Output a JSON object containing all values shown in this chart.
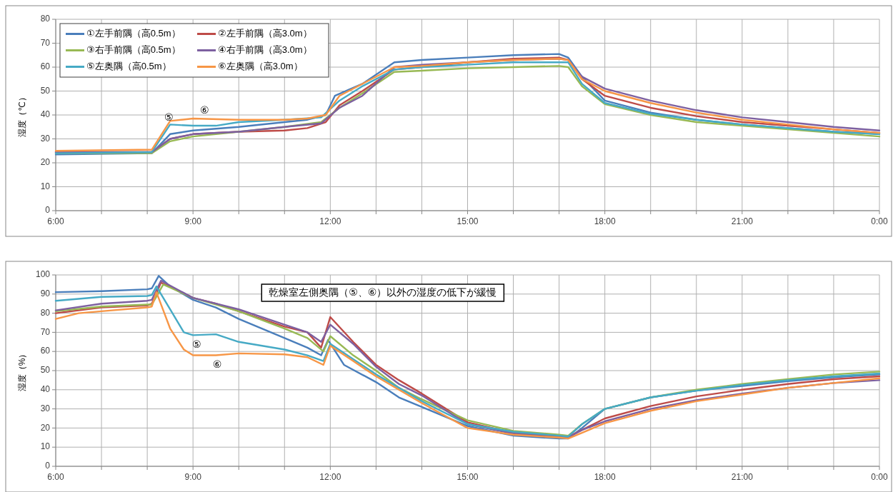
{
  "chart_data": [
    {
      "type": "line",
      "ylabel": "湿度（℃）",
      "xlim": [
        6,
        24
      ],
      "ylim": [
        0,
        80
      ],
      "xticks": [
        {
          "value": 6,
          "label": "6:00"
        },
        {
          "value": 7,
          "label": null
        },
        {
          "value": 8,
          "label": null
        },
        {
          "value": 9,
          "label": "9:00"
        },
        {
          "value": 10,
          "label": null
        },
        {
          "value": 11,
          "label": null
        },
        {
          "value": 12,
          "label": "12:00"
        },
        {
          "value": 13,
          "label": null
        },
        {
          "value": 14,
          "label": null
        },
        {
          "value": 15,
          "label": "15:00"
        },
        {
          "value": 16,
          "label": null
        },
        {
          "value": 17,
          "label": null
        },
        {
          "value": 18,
          "label": "18:00"
        },
        {
          "value": 19,
          "label": null
        },
        {
          "value": 20,
          "label": null
        },
        {
          "value": 21,
          "label": "21:00"
        },
        {
          "value": 22,
          "label": null
        },
        {
          "value": 23,
          "label": null
        },
        {
          "value": 24,
          "label": "0:00"
        }
      ],
      "yticks": [
        0,
        10,
        20,
        30,
        40,
        50,
        60,
        70,
        80
      ],
      "grid": true,
      "legend": "top left",
      "marker": "none",
      "line_style": "solid",
      "series": [
        {
          "name": "①左手前隅（高0.5m）",
          "color": "#4a7ebb",
          "x": [
            6,
            8.1,
            8.5,
            9,
            10,
            11,
            11.5,
            11.9,
            12.1,
            12.7,
            13.4,
            14,
            15,
            16,
            17,
            17.2,
            17.5,
            18,
            19,
            20,
            21,
            22,
            23,
            24
          ],
          "values": [
            23.5,
            24,
            32,
            33.5,
            35,
            37,
            38,
            40,
            48,
            53,
            62,
            63,
            64,
            65,
            65.5,
            64,
            56,
            46,
            41,
            38,
            36,
            34.5,
            33,
            32
          ]
        },
        {
          "name": "②左手前隅（高3.0m）",
          "color": "#be4b48",
          "x": [
            6,
            8.1,
            8.5,
            9,
            10,
            11,
            11.5,
            11.9,
            12.2,
            12.7,
            13.4,
            14,
            15,
            16,
            17,
            17.2,
            17.5,
            18,
            19,
            20,
            21,
            22,
            23,
            24
          ],
          "values": [
            24.5,
            24.5,
            30,
            32,
            33,
            33.5,
            34.5,
            37,
            44,
            50,
            59,
            60,
            62,
            63.5,
            64,
            63,
            55,
            48,
            43,
            39.5,
            37,
            35.5,
            34,
            32.5
          ]
        },
        {
          "name": "③右手前隅（高0.5m）",
          "color": "#98b954",
          "x": [
            6,
            8.1,
            8.5,
            9,
            10,
            11,
            11.8,
            12.2,
            12.7,
            13.4,
            14,
            15,
            16,
            17,
            17.2,
            17.5,
            18,
            19,
            20,
            21,
            22,
            23,
            24
          ],
          "values": [
            24,
            24,
            29,
            31,
            33,
            35,
            37,
            43,
            49,
            58,
            58.5,
            59.5,
            60,
            60.5,
            60,
            52,
            44.5,
            40,
            37,
            35.5,
            34,
            32.5,
            31
          ]
        },
        {
          "name": "④右手前隅（高3.0m）",
          "color": "#7d60a0",
          "x": [
            6,
            8.1,
            8.5,
            9,
            10,
            11,
            11.8,
            12.2,
            12.7,
            13.4,
            14,
            15,
            16,
            17,
            17.2,
            17.5,
            18,
            19,
            20,
            21,
            22,
            23,
            24
          ],
          "values": [
            24.5,
            24.5,
            30,
            32,
            33,
            35,
            36.5,
            43,
            48,
            60,
            61,
            62,
            63,
            63.5,
            63,
            56,
            51,
            46,
            42,
            39,
            37,
            35,
            33.5
          ]
        },
        {
          "name": "⑤左奥隅（高0.5m）",
          "color": "#46aac5",
          "x": [
            6,
            8.1,
            8.5,
            9,
            9.5,
            10,
            11,
            11.8,
            12.2,
            12.7,
            13.4,
            14,
            15,
            16,
            17,
            17.2,
            17.5,
            18,
            19,
            20,
            21,
            22,
            23,
            24
          ],
          "values": [
            24,
            24.5,
            36,
            35.5,
            35.5,
            37,
            38,
            39,
            46,
            52,
            59,
            60,
            61,
            62,
            62,
            62,
            53,
            45,
            40.5,
            38,
            36,
            34.5,
            33,
            32
          ]
        },
        {
          "name": "⑥左奥隅（高3.0m）",
          "color": "#f79646",
          "x": [
            6,
            8.1,
            8.5,
            9,
            10,
            11,
            11.5,
            11.9,
            12.2,
            12.7,
            13.4,
            14,
            15,
            16,
            17,
            17.2,
            17.5,
            18,
            19,
            20,
            21,
            22,
            23,
            24
          ],
          "values": [
            25,
            25.5,
            37.5,
            38.5,
            38,
            38,
            38.5,
            40,
            48,
            53,
            60,
            60.5,
            62,
            63,
            63.5,
            63,
            55,
            50,
            45,
            41,
            38,
            36,
            34,
            32.5
          ]
        }
      ],
      "annotations": [
        {
          "text": "⑤",
          "x": 8.47,
          "y": 35.5
        },
        {
          "text": "⑥",
          "x": 9.25,
          "y": 38.5
        }
      ]
    },
    {
      "type": "line",
      "ylabel": "湿度（%）",
      "xlim": [
        6,
        24
      ],
      "ylim": [
        0,
        100
      ],
      "xticks": [
        {
          "value": 6,
          "label": "6:00"
        },
        {
          "value": 7,
          "label": null
        },
        {
          "value": 8,
          "label": null
        },
        {
          "value": 9,
          "label": "9:00"
        },
        {
          "value": 10,
          "label": null
        },
        {
          "value": 11,
          "label": null
        },
        {
          "value": 12,
          "label": "12:00"
        },
        {
          "value": 13,
          "label": null
        },
        {
          "value": 14,
          "label": null
        },
        {
          "value": 15,
          "label": "15:00"
        },
        {
          "value": 16,
          "label": null
        },
        {
          "value": 17,
          "label": null
        },
        {
          "value": 18,
          "label": "18:00"
        },
        {
          "value": 19,
          "label": null
        },
        {
          "value": 20,
          "label": null
        },
        {
          "value": 21,
          "label": "21:00"
        },
        {
          "value": 22,
          "label": null
        },
        {
          "value": 23,
          "label": null
        },
        {
          "value": 24,
          "label": "0:00"
        }
      ],
      "yticks": [
        0,
        10,
        20,
        30,
        40,
        50,
        60,
        70,
        80,
        90,
        100
      ],
      "grid": true,
      "marker": "none",
      "line_style": "solid",
      "series": [
        {
          "color": "#4a7ebb",
          "x": [
            6,
            7,
            8,
            8.1,
            8.25,
            8.5,
            9,
            9.5,
            10,
            11,
            11.5,
            11.8,
            11.95,
            12.3,
            13,
            13.5,
            14,
            15,
            16,
            17,
            17.2,
            17.5,
            18,
            19,
            20,
            21,
            22,
            23,
            24
          ],
          "values": [
            91,
            91.5,
            92.5,
            93,
            99.5,
            94,
            87,
            83,
            77,
            67,
            62,
            58,
            66,
            53,
            44,
            36,
            31,
            21,
            16,
            14.5,
            14.5,
            20,
            30,
            36,
            39.5,
            42,
            44.5,
            46.5,
            48
          ]
        },
        {
          "color": "#be4b48",
          "x": [
            6,
            7,
            8,
            8.1,
            8.3,
            9,
            9.5,
            10,
            11,
            11.5,
            11.8,
            12,
            12.5,
            13,
            13.5,
            14,
            15,
            16,
            17,
            17.2,
            17.5,
            18,
            19,
            20,
            21,
            22,
            23,
            24
          ],
          "values": [
            80,
            83,
            84,
            85,
            96,
            88,
            85,
            81,
            73,
            70,
            62,
            78,
            65,
            53,
            45,
            38,
            23,
            17.5,
            15.5,
            15.5,
            19,
            25,
            31.5,
            36.5,
            40,
            43,
            45.5,
            47
          ]
        },
        {
          "color": "#98b954",
          "x": [
            6,
            7,
            8,
            8.1,
            8.35,
            9,
            10,
            11,
            11.5,
            11.85,
            12,
            12.5,
            13,
            13.5,
            14,
            15,
            16,
            17,
            17.2,
            17.5,
            18,
            19,
            20,
            21,
            22,
            23,
            24
          ],
          "values": [
            81,
            83.5,
            84.5,
            84.5,
            95,
            88,
            81,
            72,
            67,
            60,
            68,
            58,
            50,
            41,
            35,
            24,
            18.5,
            16.5,
            16,
            22,
            30,
            36,
            40,
            43,
            45.5,
            48,
            49.5
          ]
        },
        {
          "color": "#7d60a0",
          "x": [
            6,
            7,
            8,
            8.1,
            8.3,
            9,
            10,
            11,
            11.5,
            11.8,
            12,
            12.5,
            13,
            13.5,
            14,
            15,
            16,
            17,
            17.2,
            17.5,
            18,
            19,
            20,
            21,
            22,
            23,
            24
          ],
          "values": [
            81.5,
            85,
            86.5,
            87,
            97,
            88,
            82,
            74,
            70,
            65,
            74,
            64,
            52,
            43,
            37,
            22,
            17,
            15,
            15,
            19,
            23.5,
            30,
            34.5,
            38,
            41,
            43.5,
            45
          ]
        },
        {
          "color": "#46aac5",
          "x": [
            6,
            7,
            8,
            8.1,
            8.2,
            8.5,
            8.8,
            9,
            9.5,
            10,
            11,
            11.5,
            11.85,
            12,
            12.5,
            13,
            13.5,
            14,
            15,
            16,
            17,
            17.2,
            17.5,
            18,
            19,
            20,
            21,
            22,
            23,
            24
          ],
          "values": [
            86.5,
            88.5,
            89,
            89.5,
            94,
            82,
            70,
            68.5,
            69,
            65,
            61,
            58,
            55,
            64,
            56,
            48,
            41,
            34,
            22,
            18,
            16,
            15.5,
            22,
            30,
            36,
            39.5,
            42.5,
            45,
            47,
            48.5
          ]
        },
        {
          "color": "#f79646",
          "x": [
            6,
            6.5,
            7,
            8,
            8.1,
            8.2,
            8.5,
            8.8,
            9,
            9.5,
            10,
            11,
            11.5,
            11.85,
            12,
            12.5,
            13,
            13.5,
            14,
            15,
            16,
            17,
            17.2,
            17.5,
            18,
            19,
            20,
            21,
            22,
            23,
            24
          ],
          "values": [
            77,
            80,
            81,
            83,
            83.5,
            91,
            72,
            61,
            58,
            58,
            59,
            58.5,
            57,
            53,
            63,
            55,
            47,
            40,
            33,
            20,
            16.5,
            15,
            14.5,
            17.5,
            22.5,
            29,
            34,
            37.5,
            41,
            43.5,
            46
          ]
        }
      ],
      "annotations": [
        {
          "text": "⑤",
          "x": 9.08,
          "y": 68.5
        },
        {
          "text": "⑥",
          "x": 9.53,
          "y": 58
        },
        "乾燥室左側奥隅（⑤、⑥）以外の湿度の低下が緩慢"
      ]
    }
  ]
}
